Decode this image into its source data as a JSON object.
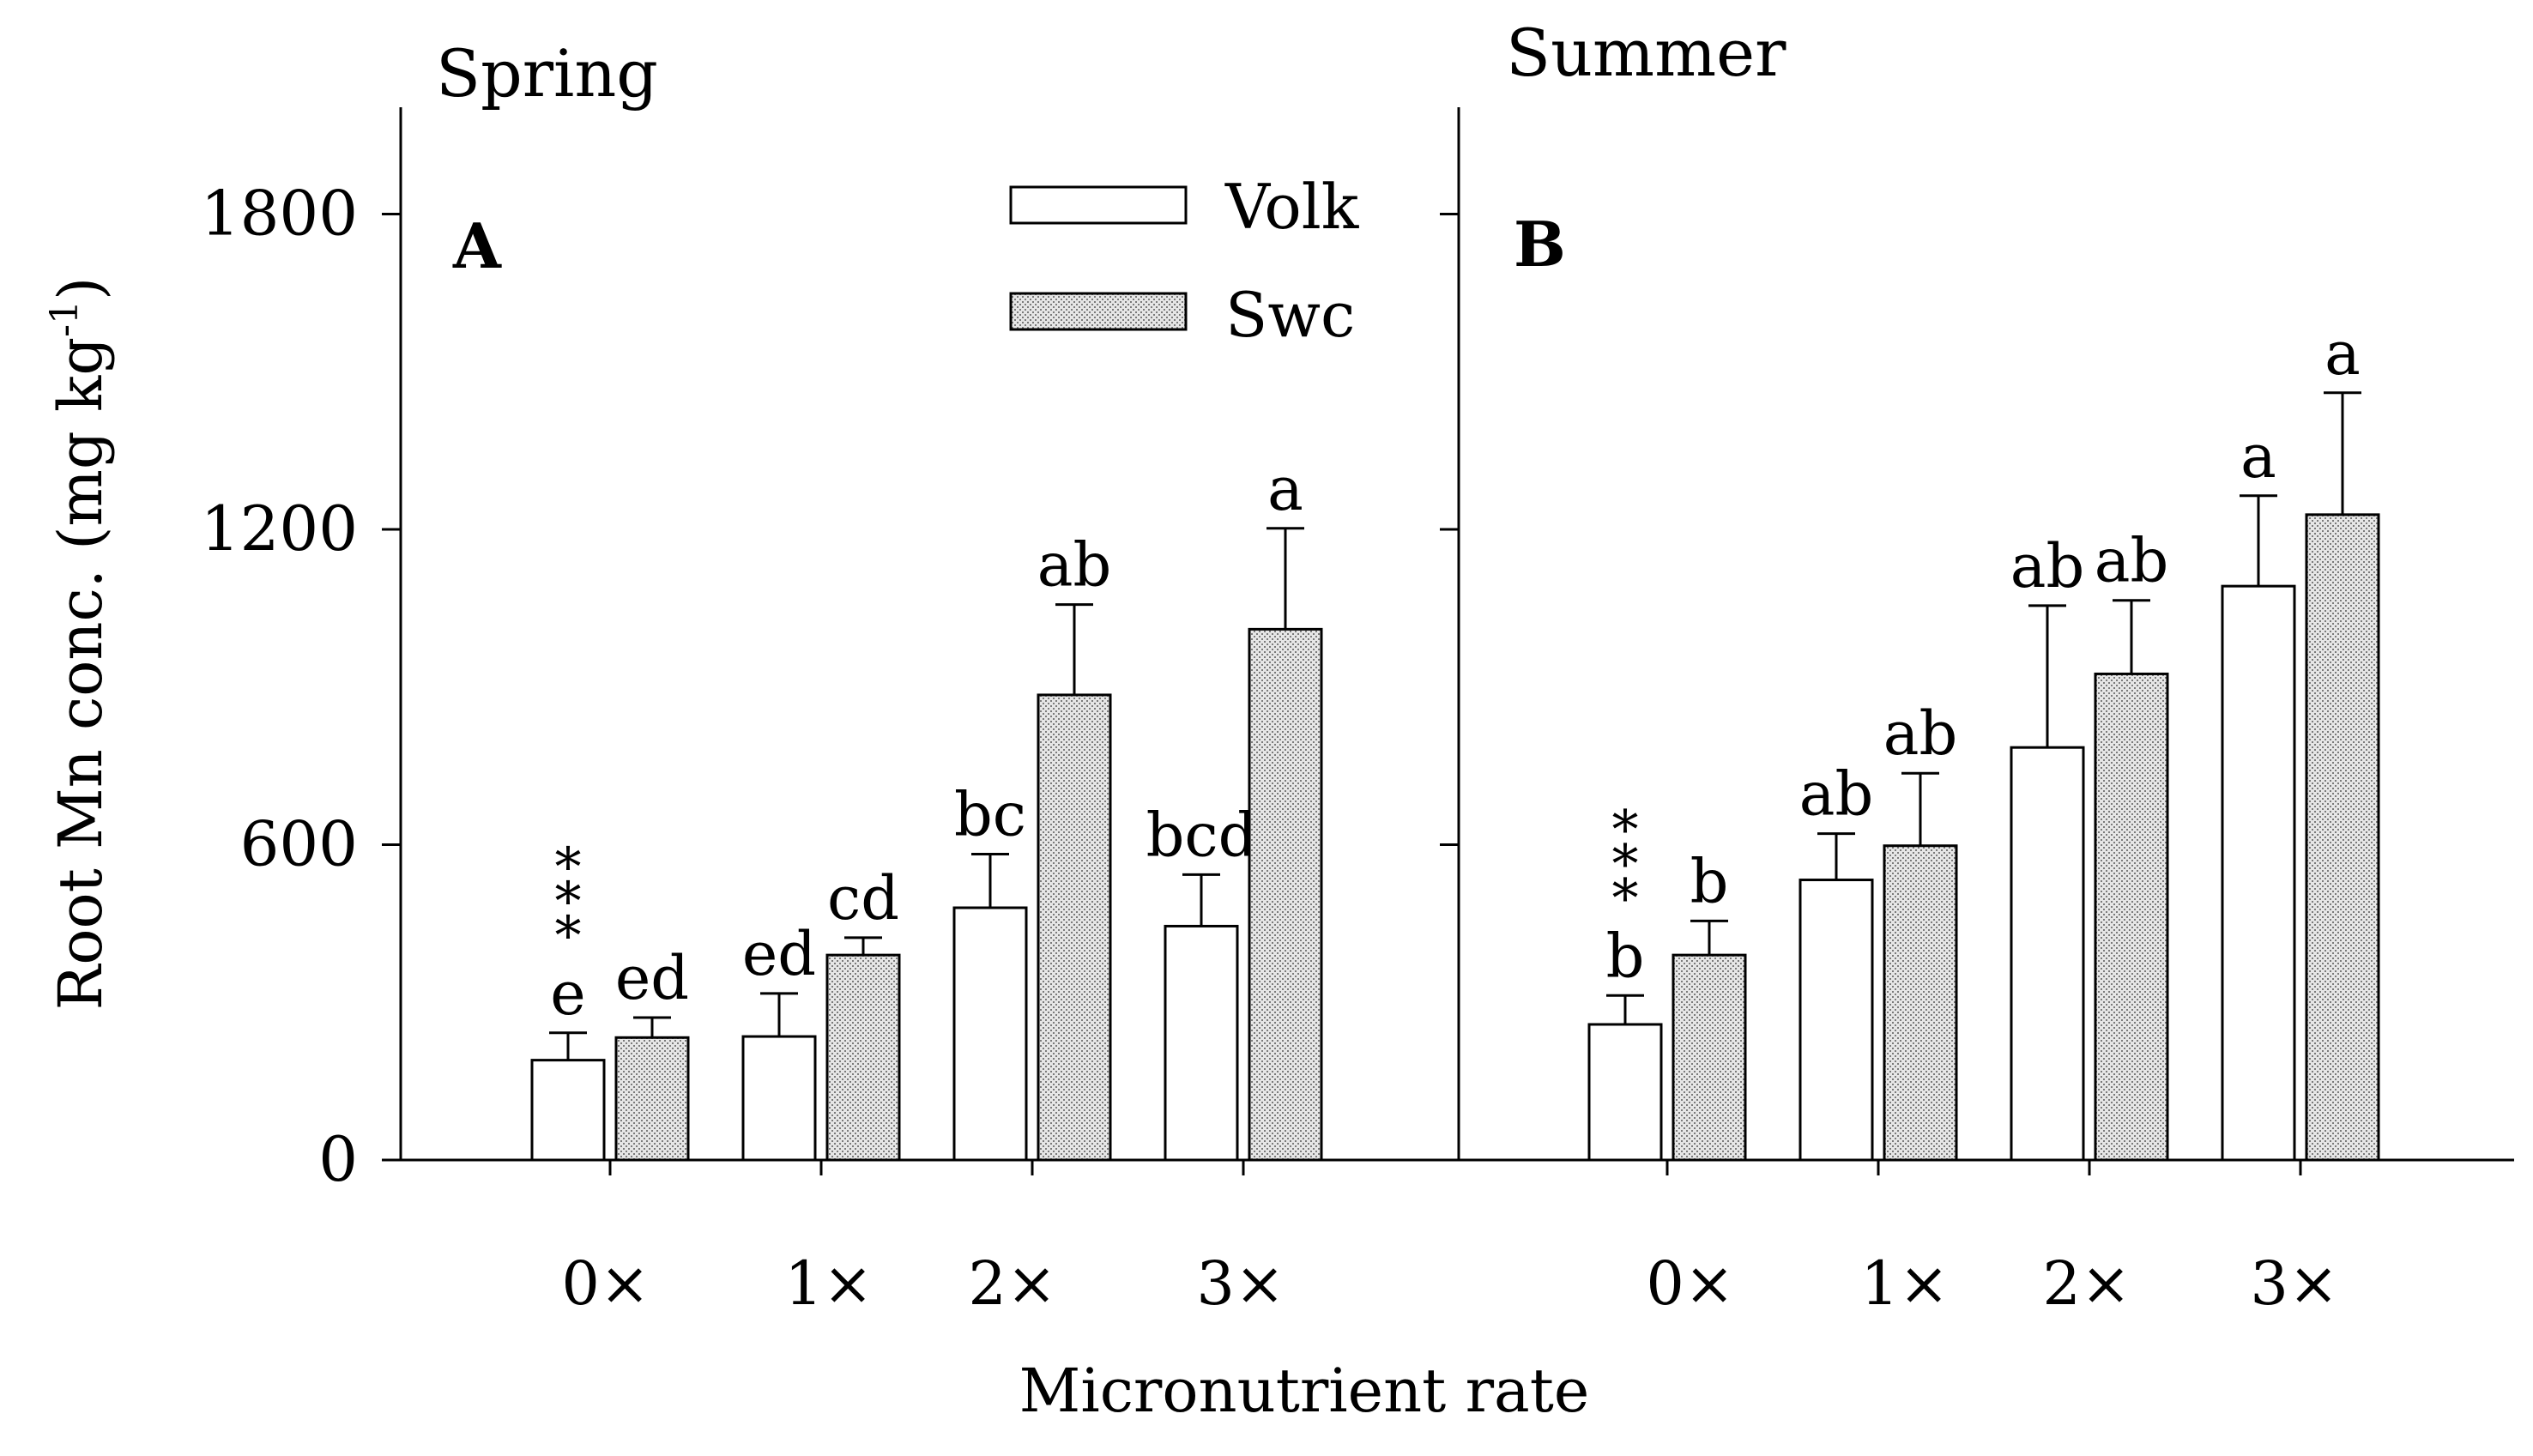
{
  "figure": {
    "ylabel_text": "Root Mn conc. (mg kg",
    "ylabel_sup": "-1",
    "ylabel_close": ")",
    "xlabel": "Micronutrient rate"
  },
  "legend": {
    "volk": "Volk",
    "swc": "Swc"
  },
  "colors": {
    "volk_fill": "#ffffff",
    "swc_fill": "#cfcfcf",
    "axis": "#000000"
  },
  "chart_data": [
    {
      "type": "bar",
      "panel": "A",
      "season": "Spring",
      "categories": [
        "0×",
        "1×",
        "2×",
        "3×"
      ],
      "ylim": [
        0,
        2000
      ],
      "yticks": [
        0,
        600,
        1200,
        1800
      ],
      "series": [
        {
          "name": "Volk",
          "values": [
            190,
            235,
            480,
            445
          ],
          "errors": [
            52,
            82,
            102,
            98
          ],
          "letters": [
            "e",
            "ed",
            "bc",
            "bcd"
          ]
        },
        {
          "name": "Swc",
          "values": [
            233,
            390,
            885,
            1010
          ],
          "errors": [
            38,
            33,
            172,
            192
          ],
          "letters": [
            "ed",
            "cd",
            "ab",
            "a"
          ]
        }
      ],
      "significance": [
        {
          "category": "0×",
          "label": "***"
        }
      ]
    },
    {
      "type": "bar",
      "panel": "B",
      "season": "Summer",
      "categories": [
        "0×",
        "1×",
        "2×",
        "3×"
      ],
      "ylim": [
        0,
        2000
      ],
      "yticks": [
        0,
        600,
        1200,
        1800
      ],
      "series": [
        {
          "name": "Volk",
          "values": [
            258,
            533,
            785,
            1092
          ],
          "errors": [
            55,
            88,
            270,
            172
          ],
          "letters": [
            "b",
            "ab",
            "ab",
            "a"
          ]
        },
        {
          "name": "Swc",
          "values": [
            390,
            598,
            925,
            1228
          ],
          "errors": [
            65,
            138,
            140,
            232
          ],
          "letters": [
            "b",
            "ab",
            "ab",
            "a"
          ]
        }
      ],
      "significance": [
        {
          "category": "0×",
          "label": "***"
        }
      ]
    }
  ]
}
